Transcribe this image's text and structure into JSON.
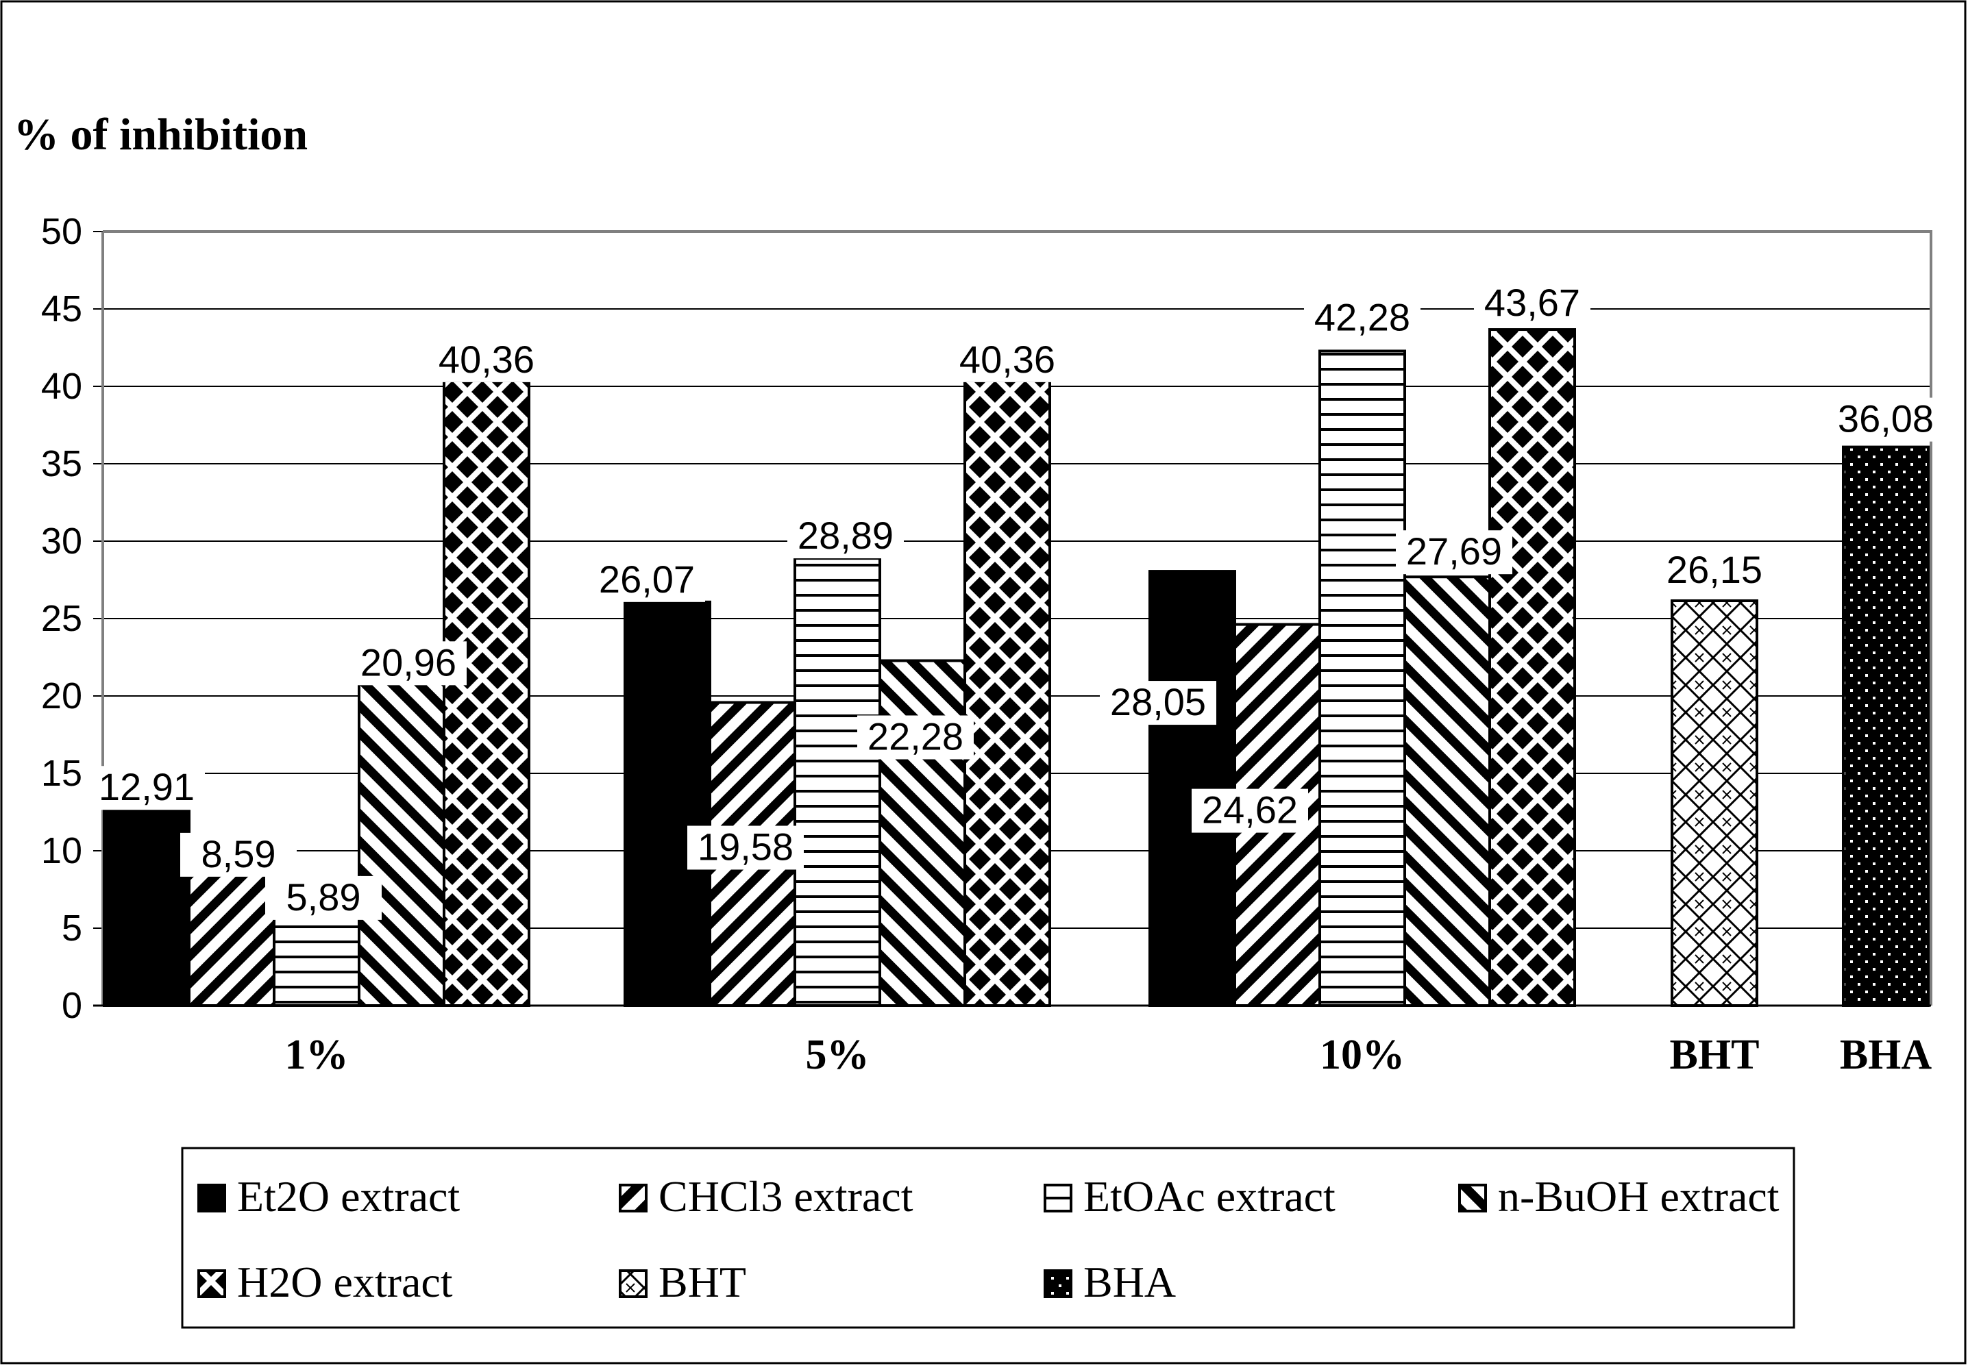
{
  "chart_data": {
    "type": "bar",
    "title": "",
    "ylabel": "% of inhibition",
    "xlabel": "",
    "ylim": [
      0,
      50
    ],
    "yticks": [
      0,
      5,
      10,
      15,
      20,
      25,
      30,
      35,
      40,
      45,
      50
    ],
    "grid": true,
    "legend_position": "bottom",
    "groups": [
      {
        "label": "1%",
        "bars": [
          {
            "series": "Et2O extract",
            "value": 12.91,
            "label": "12,91"
          },
          {
            "series": "CHCl3 extract",
            "value": 8.59,
            "label": "8,59"
          },
          {
            "series": "EtOAc extract",
            "value": 5.89,
            "label": "5,89"
          },
          {
            "series": "n-BuOH extract",
            "value": 20.96,
            "label": "20,96"
          },
          {
            "series": "H2O extract",
            "value": 40.36,
            "label": "40,36"
          }
        ]
      },
      {
        "label": "5%",
        "bars": [
          {
            "series": "Et2O extract",
            "value": 26.07,
            "label": "26,07"
          },
          {
            "series": "CHCl3 extract",
            "value": 19.58,
            "label": "19,58"
          },
          {
            "series": "EtOAc extract",
            "value": 28.89,
            "label": "28,89"
          },
          {
            "series": "n-BuOH extract",
            "value": 22.28,
            "label": "22,28"
          },
          {
            "series": "H2O extract",
            "value": 40.36,
            "label": "40,36"
          }
        ]
      },
      {
        "label": "10%",
        "bars": [
          {
            "series": "Et2O extract",
            "value": 28.05,
            "label": "28,05"
          },
          {
            "series": "CHCl3 extract",
            "value": 24.62,
            "label": "24,62"
          },
          {
            "series": "EtOAc extract",
            "value": 42.28,
            "label": "42,28"
          },
          {
            "series": "n-BuOH extract",
            "value": 27.69,
            "label": "27,69"
          },
          {
            "series": "H2O extract",
            "value": 43.67,
            "label": "43,67"
          }
        ]
      },
      {
        "label": "BHT",
        "bars": [
          {
            "series": "BHT",
            "value": 26.15,
            "label": "26,15"
          }
        ]
      },
      {
        "label": "BHA",
        "bars": [
          {
            "series": "BHA",
            "value": 36.08,
            "label": "36,08"
          }
        ]
      }
    ],
    "legend": [
      {
        "name": "Et2O extract",
        "pattern": "solid"
      },
      {
        "name": "CHCl3 extract",
        "pattern": "diag-down"
      },
      {
        "name": "EtOAc extract",
        "pattern": "horizontal"
      },
      {
        "name": "n-BuOH extract",
        "pattern": "diag-up"
      },
      {
        "name": "H2O extract",
        "pattern": "diamond"
      },
      {
        "name": "BHT",
        "pattern": "lattice"
      },
      {
        "name": "BHA",
        "pattern": "dotted"
      }
    ]
  }
}
